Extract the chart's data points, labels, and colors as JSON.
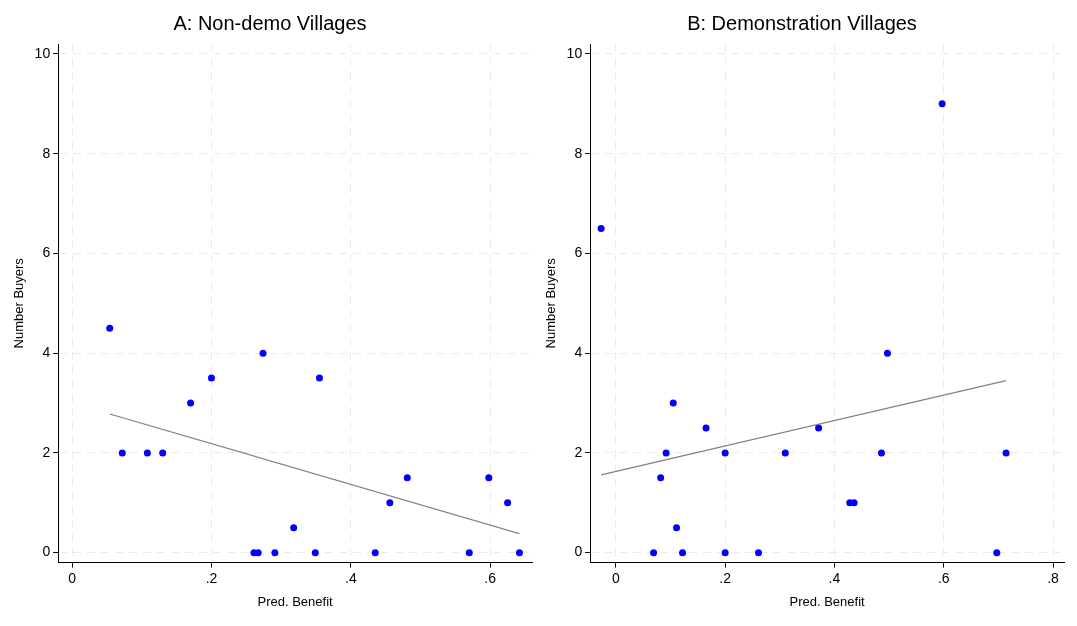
{
  "chart_data": [
    {
      "type": "scatter",
      "title": "A: Non-demo Villages",
      "xlabel": "Pred. Benefit",
      "ylabel": "Number Buyers",
      "xlim": [
        -0.02,
        0.66
      ],
      "xticks": [
        0,
        {
          "value": 0.2,
          "label": ".2"
        },
        {
          "value": 0.4,
          "label": ".4"
        },
        {
          "value": 0.6,
          "label": ".6"
        }
      ],
      "ylim": [
        -0.2,
        10.2
      ],
      "yticks": [
        0,
        2,
        4,
        6,
        8,
        10
      ],
      "grid": true,
      "legend": false,
      "series": [
        {
          "type": "scatter",
          "marker": "circle",
          "color": "#0000ff",
          "x": [
            0.054,
            0.072,
            0.108,
            0.13,
            0.17,
            0.2,
            0.261,
            0.267,
            0.274,
            0.291,
            0.318,
            0.349,
            0.355,
            0.435,
            0.456,
            0.481,
            0.57,
            0.598,
            0.625,
            0.642
          ],
          "values": [
            4.5,
            2,
            2,
            2,
            3,
            3.5,
            0,
            0,
            4,
            0,
            0.5,
            0,
            3.5,
            0,
            1,
            1.5,
            0,
            1.5,
            1,
            0
          ]
        },
        {
          "type": "line",
          "marker": "none",
          "color": "#808080",
          "x": [
            0.054,
            0.642
          ],
          "values": [
            2.78,
            0.38
          ]
        }
      ]
    },
    {
      "type": "scatter",
      "title": "B: Demonstration Villages",
      "xlabel": "Pred. Benefit",
      "ylabel": "Number Buyers",
      "xlim": [
        -0.047,
        0.82
      ],
      "xticks": [
        0,
        {
          "value": 0.2,
          "label": ".2"
        },
        {
          "value": 0.4,
          "label": ".4"
        },
        {
          "value": 0.6,
          "label": ".6"
        },
        {
          "value": 0.8,
          "label": ".8"
        }
      ],
      "ylim": [
        -0.2,
        10.2
      ],
      "yticks": [
        0,
        2,
        4,
        6,
        8,
        10
      ],
      "grid": true,
      "legend": false,
      "series": [
        {
          "type": "scatter",
          "marker": "circle",
          "color": "#0000ff",
          "x": [
            -0.027,
            0.597,
            0.497,
            0.105,
            0.165,
            0.371,
            0.092,
            0.2,
            0.31,
            0.486,
            0.714,
            0.082,
            0.428,
            0.436,
            0.111,
            0.069,
            0.122,
            0.2,
            0.261,
            0.697
          ],
          "values": [
            6.5,
            9,
            4,
            3,
            2.5,
            2.5,
            2,
            2,
            2,
            2,
            2,
            1.5,
            1,
            1,
            0.5,
            0,
            0,
            0,
            0,
            0
          ]
        },
        {
          "type": "line",
          "marker": "none",
          "color": "#808080",
          "x": [
            -0.027,
            0.714
          ],
          "values": [
            1.56,
            3.45
          ]
        }
      ]
    }
  ]
}
